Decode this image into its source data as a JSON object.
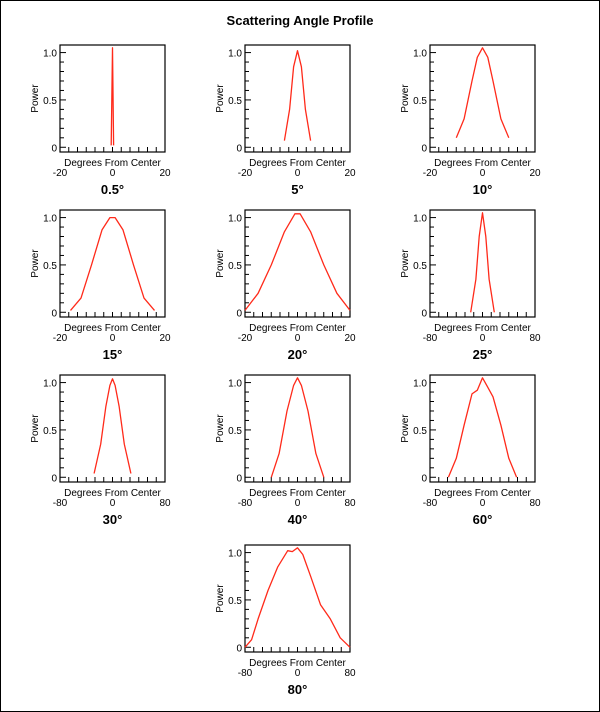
{
  "chart_data": {
    "title": "Scattering Angle Profile",
    "type": "line",
    "line_color": "#ff2a1a",
    "charts": [
      {
        "label": "0.5°",
        "xlabel": "Degrees From Center",
        "ylabel": "Power",
        "xlim": [
          -20,
          20
        ],
        "ylim": [
          -0.05,
          1.08
        ],
        "xticks": [
          "-20",
          "0",
          "20"
        ],
        "xtick_values": [
          -20,
          0,
          20
        ],
        "yticks": [
          "0",
          "0.5",
          "1.0"
        ],
        "ytick_values": [
          0,
          0.5,
          1.0
        ],
        "x": [
          -0.5,
          0,
          0.4
        ],
        "y": [
          0.02,
          1.05,
          0.02
        ]
      },
      {
        "label": "5°",
        "xlabel": "Degrees From Center",
        "ylabel": "Power",
        "xlim": [
          -20,
          20
        ],
        "ylim": [
          -0.05,
          1.08
        ],
        "xticks": [
          "-20",
          "0",
          "20"
        ],
        "xtick_values": [
          -20,
          0,
          20
        ],
        "yticks": [
          "0",
          "0.5",
          "1.0"
        ],
        "ytick_values": [
          0,
          0.5,
          1.0
        ],
        "x": [
          -5,
          -3,
          -1.5,
          0,
          1.5,
          3,
          5
        ],
        "y": [
          0.07,
          0.4,
          0.85,
          1.02,
          0.85,
          0.4,
          0.07
        ]
      },
      {
        "label": "10°",
        "xlabel": "Degrees From Center",
        "ylabel": "Power",
        "xlim": [
          -20,
          20
        ],
        "ylim": [
          -0.05,
          1.08
        ],
        "xticks": [
          "-20",
          "0",
          "20"
        ],
        "xtick_values": [
          -20,
          0,
          20
        ],
        "yticks": [
          "0",
          "0.5",
          "1.0"
        ],
        "ytick_values": [
          0,
          0.5,
          1.0
        ],
        "x": [
          -10,
          -7,
          -4,
          -2,
          0,
          2,
          4,
          7,
          10
        ],
        "y": [
          0.1,
          0.3,
          0.7,
          0.95,
          1.05,
          0.95,
          0.7,
          0.3,
          0.1
        ]
      },
      {
        "label": "15°",
        "xlabel": "Degrees From Center",
        "ylabel": "Power",
        "xlim": [
          -20,
          20
        ],
        "ylim": [
          -0.05,
          1.08
        ],
        "xticks": [
          "-20",
          "0",
          "20"
        ],
        "xtick_values": [
          -20,
          0,
          20
        ],
        "yticks": [
          "0",
          "0.5",
          "1.0"
        ],
        "ytick_values": [
          0,
          0.5,
          1.0
        ],
        "x": [
          -16,
          -12,
          -8,
          -4,
          -1,
          1,
          4,
          8,
          12,
          16
        ],
        "y": [
          0.02,
          0.15,
          0.5,
          0.87,
          1.0,
          1.0,
          0.87,
          0.5,
          0.15,
          0.02
        ]
      },
      {
        "label": "20°",
        "xlabel": "Degrees From Center",
        "ylabel": "Power",
        "xlim": [
          -20,
          20
        ],
        "ylim": [
          -0.05,
          1.08
        ],
        "xticks": [
          "-20",
          "0",
          "20"
        ],
        "xtick_values": [
          -20,
          0,
          20
        ],
        "yticks": [
          "0",
          "0.5",
          "1.0"
        ],
        "ytick_values": [
          0,
          0.5,
          1.0
        ],
        "x": [
          -20,
          -15,
          -10,
          -5,
          -1,
          1,
          5,
          10,
          15,
          20
        ],
        "y": [
          0.02,
          0.2,
          0.5,
          0.85,
          1.04,
          1.04,
          0.85,
          0.5,
          0.2,
          0.02
        ]
      },
      {
        "label": "25°",
        "xlabel": "Degrees From Center",
        "ylabel": "Power",
        "xlim": [
          -80,
          80
        ],
        "ylim": [
          -0.05,
          1.08
        ],
        "xticks": [
          "-80",
          "0",
          "80"
        ],
        "xtick_values": [
          -80,
          0,
          80
        ],
        "yticks": [
          "0",
          "0.5",
          "1.0"
        ],
        "ytick_values": [
          0,
          0.5,
          1.0
        ],
        "x": [
          -18,
          -10,
          -5,
          0,
          5,
          10,
          18
        ],
        "y": [
          0.0,
          0.35,
          0.8,
          1.05,
          0.8,
          0.35,
          0.0
        ]
      },
      {
        "label": "30°",
        "xlabel": "Degrees From Center",
        "ylabel": "Power",
        "xlim": [
          -80,
          80
        ],
        "ylim": [
          -0.05,
          1.08
        ],
        "xticks": [
          "-80",
          "0",
          "80"
        ],
        "xtick_values": [
          -80,
          0,
          80
        ],
        "yticks": [
          "0",
          "0.5",
          "1.0"
        ],
        "ytick_values": [
          0,
          0.5,
          1.0
        ],
        "x": [
          -28,
          -18,
          -10,
          -4,
          0,
          4,
          10,
          18,
          28
        ],
        "y": [
          0.04,
          0.35,
          0.75,
          0.97,
          1.04,
          0.97,
          0.75,
          0.35,
          0.04
        ]
      },
      {
        "label": "40°",
        "xlabel": "Degrees From Center",
        "ylabel": "Power",
        "xlim": [
          -80,
          80
        ],
        "ylim": [
          -0.05,
          1.08
        ],
        "xticks": [
          "-80",
          "0",
          "80"
        ],
        "xtick_values": [
          -80,
          0,
          80
        ],
        "yticks": [
          "0",
          "0.5",
          "1.0"
        ],
        "ytick_values": [
          0,
          0.5,
          1.0
        ],
        "x": [
          -40,
          -28,
          -16,
          -6,
          0,
          6,
          16,
          28,
          40
        ],
        "y": [
          0.0,
          0.25,
          0.7,
          0.97,
          1.05,
          0.97,
          0.7,
          0.25,
          0.0
        ]
      },
      {
        "label": "60°",
        "xlabel": "Degrees From Center",
        "ylabel": "Power",
        "xlim": [
          -80,
          80
        ],
        "ylim": [
          -0.05,
          1.08
        ],
        "xticks": [
          "-80",
          "0",
          "80"
        ],
        "xtick_values": [
          -80,
          0,
          80
        ],
        "yticks": [
          "0",
          "0.5",
          "1.0"
        ],
        "ytick_values": [
          0,
          0.5,
          1.0
        ],
        "x": [
          -52,
          -40,
          -28,
          -16,
          -8,
          0,
          8,
          16,
          28,
          40,
          52
        ],
        "y": [
          0.0,
          0.2,
          0.55,
          0.88,
          0.92,
          1.05,
          0.95,
          0.85,
          0.55,
          0.2,
          0.0
        ]
      },
      {
        "label": "80°",
        "xlabel": "Degrees From Center",
        "ylabel": "Power",
        "xlim": [
          -80,
          80
        ],
        "ylim": [
          -0.05,
          1.08
        ],
        "xticks": [
          "-80",
          "0",
          "80"
        ],
        "xtick_values": [
          -80,
          0,
          80
        ],
        "yticks": [
          "0",
          "0.5",
          "1.0"
        ],
        "ytick_values": [
          0,
          0.5,
          1.0
        ],
        "x": [
          -80,
          -70,
          -60,
          -45,
          -30,
          -15,
          -8,
          0,
          8,
          20,
          35,
          50,
          65,
          80
        ],
        "y": [
          0.0,
          0.08,
          0.3,
          0.6,
          0.85,
          1.02,
          1.01,
          1.05,
          0.98,
          0.75,
          0.45,
          0.3,
          0.1,
          0.0
        ]
      }
    ]
  }
}
